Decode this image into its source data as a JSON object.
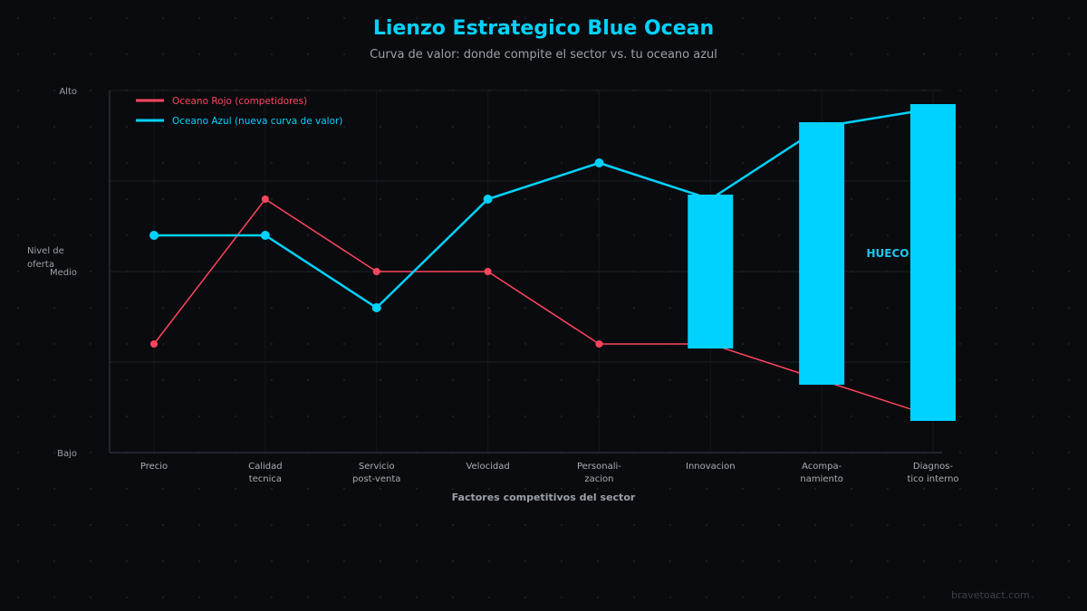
{
  "title": "Lienzo Estrategico Blue Ocean",
  "subtitle": "Curva de valor: donde compite el sector vs. tu oceano azul",
  "footer": "bravetoact.com",
  "chart_data": {
    "type": "line",
    "title": "Lienzo Estrategico Blue Ocean",
    "subtitle": "Curva de valor: donde compite el sector vs. tu oceano azul",
    "xlabel": "Factores competitivos del sector",
    "ylabel": [
      "Nivel de",
      "oferta"
    ],
    "ylim": [
      0,
      10
    ],
    "y_ticks": [
      {
        "value": 10,
        "label": "Alto"
      },
      {
        "value": 5,
        "label": "Medio"
      },
      {
        "value": 0,
        "label": "Bajo"
      }
    ],
    "grid": true,
    "legend_position": "top-left",
    "categories": [
      [
        "Precio"
      ],
      [
        "Calidad",
        "tecnica"
      ],
      [
        "Servicio",
        "post-venta"
      ],
      [
        "Velocidad"
      ],
      [
        "Personali-",
        "zacion"
      ],
      [
        "Innovacion"
      ],
      [
        "Acompa-",
        "namiento"
      ],
      [
        "Diagnos-",
        "tico interno"
      ]
    ],
    "series": [
      {
        "name": "Oceano Rojo (competidores)",
        "color": "#ff4560",
        "values": [
          3,
          7,
          5,
          5,
          3,
          3,
          2,
          1
        ]
      },
      {
        "name": "Oceano Azul (nueva curva de valor)",
        "color": "#00d2ff",
        "values": [
          6,
          6,
          4,
          7,
          8,
          7,
          9,
          9.5
        ]
      }
    ],
    "gap_highlights": {
      "categories": [
        5,
        6,
        7
      ],
      "color": "#00d2ff",
      "label": "HUECO"
    }
  }
}
